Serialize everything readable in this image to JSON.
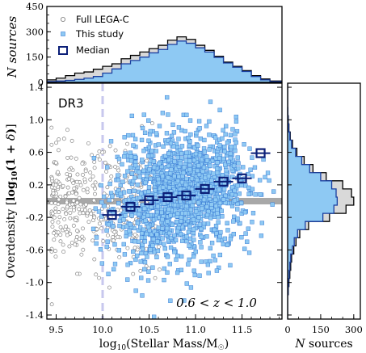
{
  "chart_data": [
    {
      "id": "top-histogram",
      "type": "histogram",
      "ylabel": "N sources",
      "ylim": [
        0,
        450
      ],
      "yticks": [
        "0",
        "150",
        "300",
        "450"
      ],
      "xlim": [
        9.4,
        11.93
      ],
      "bin_edges": [
        9.4,
        9.5,
        9.6,
        9.7,
        9.8,
        9.9,
        10.0,
        10.1,
        10.2,
        10.3,
        10.4,
        10.5,
        10.6,
        10.7,
        10.8,
        10.9,
        11.0,
        11.1,
        11.2,
        11.3,
        11.4,
        11.5,
        11.6,
        11.7,
        11.8,
        11.93
      ],
      "series": [
        {
          "name": "Full LEGA-C",
          "color": "#d9d9d9",
          "values": [
            15,
            25,
            40,
            55,
            62,
            78,
            95,
            110,
            140,
            160,
            180,
            200,
            220,
            250,
            270,
            255,
            220,
            190,
            155,
            120,
            95,
            70,
            40,
            20,
            8
          ]
        },
        {
          "name": "This study",
          "color": "#8ec9f3",
          "values": [
            5,
            8,
            12,
            18,
            25,
            35,
            55,
            80,
            110,
            130,
            150,
            175,
            195,
            225,
            245,
            232,
            205,
            180,
            148,
            115,
            90,
            65,
            35,
            15,
            5
          ]
        }
      ],
      "legend": [
        {
          "label": "Full LEGA-C",
          "marker": "circle"
        },
        {
          "label": "This study",
          "marker": "square-blue"
        },
        {
          "label": "Median",
          "marker": "square-open"
        }
      ]
    },
    {
      "id": "main-scatter",
      "type": "scatter",
      "panel_label": "DR3",
      "annotation": "0.6 < z < 1.0",
      "xlabel": "log10(Stellar Mass/M☉)",
      "ylabel": "Overdensity [log10(1+δ)]",
      "xlim": [
        9.4,
        11.93
      ],
      "ylim": [
        -1.45,
        1.45
      ],
      "xticks": [
        "9.5",
        "10.0",
        "10.5",
        "11.0",
        "11.5"
      ],
      "yticks": [
        "1.4",
        "1.0",
        "0.6",
        "0.2",
        "-0.2",
        "-0.6",
        "-1.0",
        "-1.4"
      ],
      "mass_limit_x": 10.0,
      "hband_y": [
        -0.04,
        0.04
      ],
      "median": {
        "name": "Median",
        "x": [
          10.1,
          10.3,
          10.5,
          10.7,
          10.9,
          11.1,
          11.3,
          11.5,
          11.7
        ],
        "y": [
          -0.17,
          -0.07,
          0.01,
          0.05,
          0.07,
          0.15,
          0.24,
          0.28,
          0.59
        ]
      },
      "full_legac_count": 420,
      "this_study_count": 1500
    },
    {
      "id": "right-histogram",
      "type": "histogram",
      "orientation": "horizontal",
      "xlabel": "N sources",
      "xlim": [
        0,
        330
      ],
      "xticks": [
        "0",
        "150",
        "300"
      ],
      "bin_centers": [
        -1.4,
        -1.3,
        -1.2,
        -1.1,
        -1.0,
        -0.9,
        -0.8,
        -0.7,
        -0.6,
        -0.5,
        -0.4,
        -0.3,
        -0.2,
        -0.1,
        0.0,
        0.1,
        0.2,
        0.3,
        0.4,
        0.5,
        0.6,
        0.7,
        0.8,
        0.9,
        1.0,
        1.1,
        1.2,
        1.3,
        1.4
      ],
      "series": [
        {
          "name": "Full LEGA-C",
          "color": "#d9d9d9",
          "values": [
            0,
            0,
            0,
            3,
            6,
            10,
            14,
            18,
            28,
            38,
            55,
            95,
            190,
            265,
            300,
            290,
            250,
            175,
            115,
            75,
            42,
            22,
            12,
            6,
            3,
            1,
            0,
            0,
            0
          ]
        },
        {
          "name": "This study",
          "color": "#8ec9f3",
          "values": [
            0,
            0,
            0,
            2,
            4,
            7,
            10,
            14,
            22,
            30,
            45,
            80,
            160,
            210,
            225,
            220,
            200,
            150,
            100,
            64,
            36,
            18,
            10,
            5,
            2,
            1,
            0,
            0,
            0
          ]
        }
      ]
    }
  ]
}
